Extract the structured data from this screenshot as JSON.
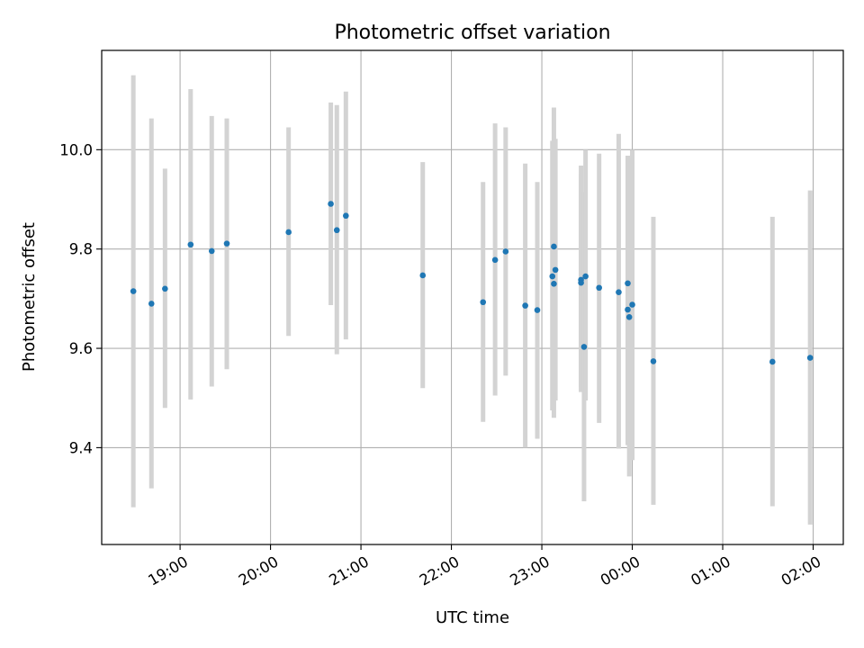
{
  "chart_data": {
    "type": "scatter",
    "title": "Photometric offset variation",
    "xlabel": "UTC time",
    "ylabel": "Photometric offset",
    "xlim": [
      "18:08",
      "02:20"
    ],
    "ylim": [
      9.205,
      10.2
    ],
    "grid": true,
    "x_ticks": [
      "19:00",
      "20:00",
      "21:00",
      "22:00",
      "23:00",
      "00:00",
      "01:00",
      "02:00"
    ],
    "y_ticks": [
      9.4,
      9.6,
      9.8,
      10.0
    ],
    "y_tick_labels": [
      "9.4",
      "9.6",
      "9.8",
      "10.0"
    ],
    "marker_color": "#1f77b4",
    "errorbar_color": "#d3d3d3",
    "points": [
      {
        "time": "18:29",
        "y": 9.715,
        "ylow": 9.28,
        "yhigh": 10.15
      },
      {
        "time": "18:41",
        "y": 9.69,
        "ylow": 9.318,
        "yhigh": 10.063
      },
      {
        "time": "18:50",
        "y": 9.72,
        "ylow": 9.48,
        "yhigh": 9.962
      },
      {
        "time": "19:07",
        "y": 9.809,
        "ylow": 9.497,
        "yhigh": 10.122
      },
      {
        "time": "19:21",
        "y": 9.796,
        "ylow": 9.523,
        "yhigh": 10.068
      },
      {
        "time": "19:31",
        "y": 9.811,
        "ylow": 9.558,
        "yhigh": 10.063
      },
      {
        "time": "20:12",
        "y": 9.834,
        "ylow": 9.625,
        "yhigh": 10.045
      },
      {
        "time": "20:40",
        "y": 9.891,
        "ylow": 9.687,
        "yhigh": 10.095
      },
      {
        "time": "20:44",
        "y": 9.838,
        "ylow": 9.588,
        "yhigh": 10.09
      },
      {
        "time": "20:50",
        "y": 9.867,
        "ylow": 9.618,
        "yhigh": 10.117
      },
      {
        "time": "21:41",
        "y": 9.747,
        "ylow": 9.52,
        "yhigh": 9.975
      },
      {
        "time": "22:21",
        "y": 9.693,
        "ylow": 9.452,
        "yhigh": 9.935
      },
      {
        "time": "22:29",
        "y": 9.778,
        "ylow": 9.505,
        "yhigh": 10.053
      },
      {
        "time": "22:36",
        "y": 9.795,
        "ylow": 9.545,
        "yhigh": 10.045
      },
      {
        "time": "22:49",
        "y": 9.686,
        "ylow": 9.4,
        "yhigh": 9.972
      },
      {
        "time": "22:57",
        "y": 9.677,
        "ylow": 9.418,
        "yhigh": 9.935
      },
      {
        "time": "23:07",
        "y": 9.745,
        "ylow": 9.475,
        "yhigh": 10.018
      },
      {
        "time": "23:08",
        "y": 9.805,
        "ylow": 9.525,
        "yhigh": 10.085
      },
      {
        "time": "23:08",
        "y": 9.73,
        "ylow": 9.46,
        "yhigh": 10.0
      },
      {
        "time": "23:09",
        "y": 9.758,
        "ylow": 9.495,
        "yhigh": 10.022
      },
      {
        "time": "23:26",
        "y": 9.738,
        "ylow": 9.512,
        "yhigh": 9.968
      },
      {
        "time": "23:26",
        "y": 9.732,
        "ylow": 9.522,
        "yhigh": 9.952
      },
      {
        "time": "23:28",
        "y": 9.603,
        "ylow": 9.292,
        "yhigh": 9.915
      },
      {
        "time": "23:29",
        "y": 9.745,
        "ylow": 9.495,
        "yhigh": 10.0
      },
      {
        "time": "23:38",
        "y": 9.722,
        "ylow": 9.45,
        "yhigh": 9.992
      },
      {
        "time": "23:51",
        "y": 9.713,
        "ylow": 9.398,
        "yhigh": 10.032
      },
      {
        "time": "23:57",
        "y": 9.731,
        "ylow": 9.475,
        "yhigh": 9.988
      },
      {
        "time": "23:57",
        "y": 9.678,
        "ylow": 9.405,
        "yhigh": 9.952
      },
      {
        "time": "23:58",
        "y": 9.663,
        "ylow": 9.342,
        "yhigh": 9.985
      },
      {
        "time": "00:00",
        "y": 9.688,
        "ylow": 9.375,
        "yhigh": 10.0
      },
      {
        "time": "00:14",
        "y": 9.574,
        "ylow": 9.285,
        "yhigh": 9.865
      },
      {
        "time": "01:33",
        "y": 9.573,
        "ylow": 9.282,
        "yhigh": 9.865
      },
      {
        "time": "01:58",
        "y": 9.581,
        "ylow": 9.245,
        "yhigh": 9.918
      }
    ]
  }
}
